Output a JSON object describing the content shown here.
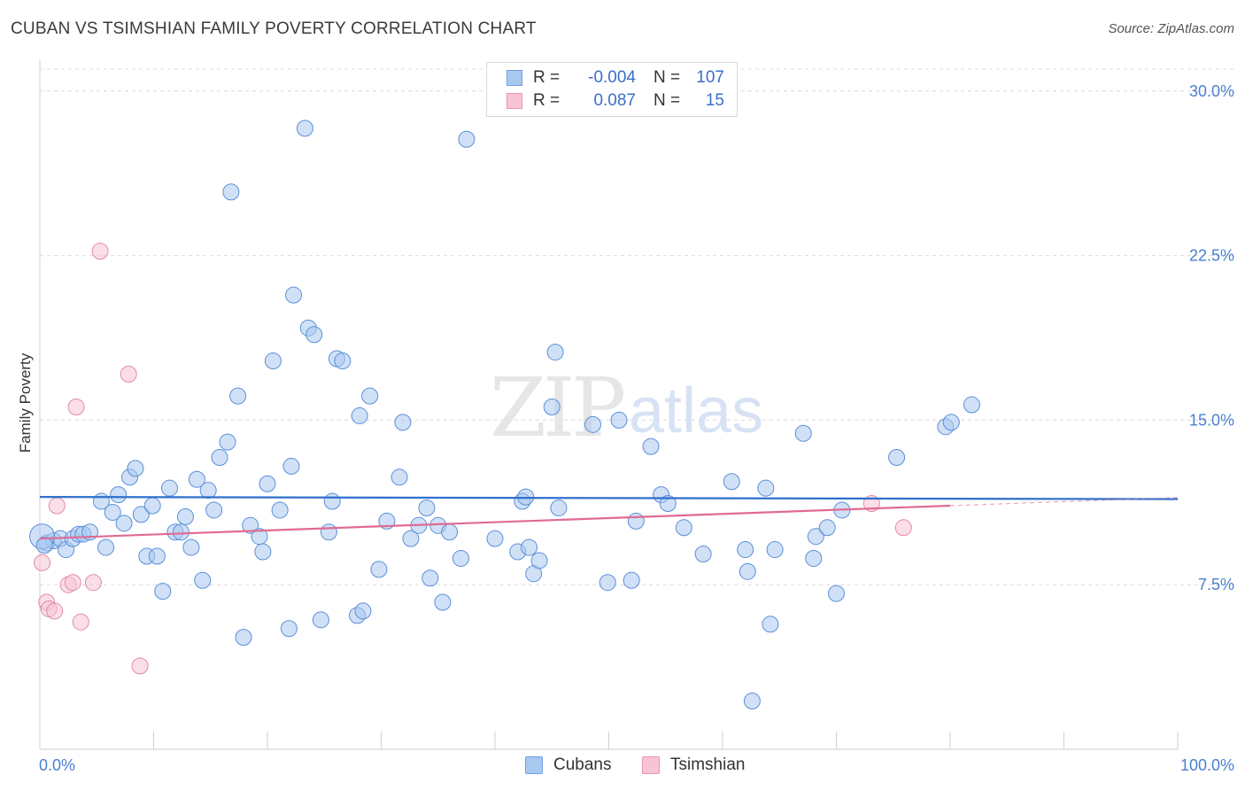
{
  "title": "CUBAN VS TSIMSHIAN FAMILY POVERTY CORRELATION CHART",
  "source": "Source: ZipAtlas.com",
  "watermark": {
    "zip": "ZIP",
    "atlas": "atlas"
  },
  "legend": {
    "rows": [
      {
        "r_label": "R =",
        "r_value": "-0.004",
        "n_label": "N =",
        "n_value": "107",
        "color": "#a9c8f0",
        "stroke": "#6fa0e0"
      },
      {
        "r_label": "R =",
        "r_value": "0.087",
        "n_label": "N =",
        "n_value": "15",
        "color": "#f8c4d4",
        "stroke": "#e893b0"
      }
    ]
  },
  "bottom_legend": {
    "cubans": "Cubans",
    "tsimshian": "Tsimshian"
  },
  "chart_data": {
    "type": "scatter",
    "title": "CUBAN VS TSIMSHIAN FAMILY POVERTY CORRELATION CHART",
    "xlabel": "",
    "ylabel": "Family Poverty",
    "xlim": [
      0,
      100
    ],
    "ylim": [
      0,
      31
    ],
    "x_tick_labels": [
      "0.0%",
      "100.0%"
    ],
    "y_ticks": [
      7.5,
      15.0,
      22.5,
      30.0
    ],
    "y_tick_labels": [
      "7.5%",
      "15.0%",
      "22.5%",
      "30.0%"
    ],
    "grid": "horizontal dashed",
    "legend_position": "top-center",
    "series": [
      {
        "name": "Cubans",
        "color": "#a9c8f0",
        "stroke": "#5b8fd8",
        "trend": {
          "x": [
            0,
            100
          ],
          "y": [
            11.5,
            11.4
          ],
          "color": "#2f6fcb"
        },
        "points": [
          [
            0.6,
            9.4
          ],
          [
            1.2,
            9.5
          ],
          [
            1.8,
            9.6
          ],
          [
            2.3,
            9.1
          ],
          [
            2.9,
            9.6
          ],
          [
            3.4,
            9.8
          ],
          [
            3.8,
            9.8
          ],
          [
            4.4,
            9.9
          ],
          [
            5.4,
            11.3
          ],
          [
            5.8,
            9.2
          ],
          [
            6.4,
            10.8
          ],
          [
            6.9,
            11.6
          ],
          [
            7.4,
            10.3
          ],
          [
            7.9,
            12.4
          ],
          [
            8.4,
            12.8
          ],
          [
            8.9,
            10.7
          ],
          [
            9.4,
            8.8
          ],
          [
            9.9,
            11.1
          ],
          [
            10.3,
            8.8
          ],
          [
            10.8,
            7.2
          ],
          [
            11.4,
            11.9
          ],
          [
            11.9,
            9.9
          ],
          [
            12.4,
            9.9
          ],
          [
            12.8,
            10.6
          ],
          [
            13.3,
            9.2
          ],
          [
            13.8,
            12.3
          ],
          [
            14.3,
            7.7
          ],
          [
            14.8,
            11.8
          ],
          [
            15.3,
            10.9
          ],
          [
            15.8,
            13.3
          ],
          [
            16.5,
            14.0
          ],
          [
            16.8,
            25.4
          ],
          [
            17.4,
            16.1
          ],
          [
            17.9,
            5.1
          ],
          [
            18.5,
            10.2
          ],
          [
            19.3,
            9.7
          ],
          [
            19.6,
            9.0
          ],
          [
            20.0,
            12.1
          ],
          [
            20.5,
            17.7
          ],
          [
            21.1,
            10.9
          ],
          [
            21.9,
            5.5
          ],
          [
            22.1,
            12.9
          ],
          [
            22.3,
            20.7
          ],
          [
            23.3,
            28.3
          ],
          [
            23.6,
            19.2
          ],
          [
            24.1,
            18.9
          ],
          [
            24.7,
            5.9
          ],
          [
            25.4,
            9.9
          ],
          [
            25.7,
            11.3
          ],
          [
            26.1,
            17.8
          ],
          [
            26.6,
            17.7
          ],
          [
            27.9,
            6.1
          ],
          [
            28.1,
            15.2
          ],
          [
            28.4,
            6.3
          ],
          [
            29.0,
            16.1
          ],
          [
            29.8,
            8.2
          ],
          [
            30.5,
            10.4
          ],
          [
            31.6,
            12.4
          ],
          [
            31.9,
            14.9
          ],
          [
            32.6,
            9.6
          ],
          [
            33.3,
            10.2
          ],
          [
            34.0,
            11.0
          ],
          [
            34.3,
            7.8
          ],
          [
            35.0,
            10.2
          ],
          [
            35.4,
            6.7
          ],
          [
            36.0,
            9.9
          ],
          [
            37.0,
            8.7
          ],
          [
            37.5,
            27.8
          ],
          [
            40.0,
            9.6
          ],
          [
            42.0,
            9.0
          ],
          [
            42.4,
            11.3
          ],
          [
            42.7,
            11.5
          ],
          [
            43.0,
            9.2
          ],
          [
            43.4,
            8.0
          ],
          [
            43.9,
            8.6
          ],
          [
            45.0,
            15.6
          ],
          [
            45.3,
            18.1
          ],
          [
            45.6,
            11.0
          ],
          [
            48.6,
            14.8
          ],
          [
            49.9,
            7.6
          ],
          [
            50.9,
            15.0
          ],
          [
            52.0,
            7.7
          ],
          [
            52.4,
            10.4
          ],
          [
            53.7,
            13.8
          ],
          [
            54.6,
            11.6
          ],
          [
            55.2,
            11.2
          ],
          [
            56.6,
            10.1
          ],
          [
            58.3,
            8.9
          ],
          [
            60.8,
            12.2
          ],
          [
            62.0,
            9.1
          ],
          [
            62.2,
            8.1
          ],
          [
            62.6,
            2.2
          ],
          [
            63.8,
            11.9
          ],
          [
            64.2,
            5.7
          ],
          [
            64.6,
            9.1
          ],
          [
            67.1,
            14.4
          ],
          [
            68.0,
            8.7
          ],
          [
            68.2,
            9.7
          ],
          [
            69.2,
            10.1
          ],
          [
            70.0,
            7.1
          ],
          [
            70.5,
            10.9
          ],
          [
            75.3,
            13.3
          ],
          [
            79.6,
            14.7
          ],
          [
            80.1,
            14.9
          ],
          [
            81.9,
            15.7
          ],
          [
            0.2,
            9.7
          ],
          [
            0.4,
            9.3
          ]
        ]
      },
      {
        "name": "Tsimshian",
        "color": "#f8c4d4",
        "stroke": "#e08aa8",
        "trend": {
          "x": [
            0,
            80
          ],
          "y": [
            9.6,
            11.1
          ],
          "dashed_to": 100,
          "color": "#e06a94"
        },
        "points": [
          [
            0.2,
            8.5
          ],
          [
            0.6,
            6.7
          ],
          [
            0.8,
            6.4
          ],
          [
            1.3,
            6.3
          ],
          [
            1.5,
            11.1
          ],
          [
            2.5,
            7.5
          ],
          [
            2.9,
            7.6
          ],
          [
            3.2,
            15.6
          ],
          [
            3.6,
            5.8
          ],
          [
            4.7,
            7.6
          ],
          [
            5.3,
            22.7
          ],
          [
            7.8,
            17.1
          ],
          [
            8.8,
            3.8
          ],
          [
            73.1,
            11.2
          ],
          [
            75.9,
            10.1
          ]
        ]
      }
    ]
  }
}
